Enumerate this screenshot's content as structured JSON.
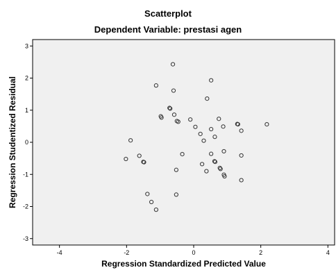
{
  "chart_data": {
    "type": "scatter",
    "title": "Scatterplot",
    "subtitle": "Dependent Variable: prestasi agen",
    "xlabel": "Regression Standardized Predicted Value",
    "ylabel": "Regression Studentized Residual",
    "xlim": [
      -4.8,
      4.2
    ],
    "ylim": [
      -3.2,
      3.2
    ],
    "xticks": [
      -4,
      -2,
      0,
      2,
      4
    ],
    "yticks": [
      -3,
      -2,
      -1,
      0,
      1,
      2,
      3
    ],
    "grid": false,
    "plot_background": "#f0f0f0",
    "point_color": "#333333",
    "marker": "open-circle",
    "points": [
      {
        "x": -0.62,
        "y": 2.43
      },
      {
        "x": 0.52,
        "y": 1.93
      },
      {
        "x": -1.12,
        "y": 1.77
      },
      {
        "x": -0.6,
        "y": 1.61
      },
      {
        "x": 0.4,
        "y": 1.36
      },
      {
        "x": -0.72,
        "y": 1.07
      },
      {
        "x": -0.7,
        "y": 1.05
      },
      {
        "x": -0.58,
        "y": 0.86
      },
      {
        "x": -0.98,
        "y": 0.81
      },
      {
        "x": -0.96,
        "y": 0.77
      },
      {
        "x": -0.1,
        "y": 0.71
      },
      {
        "x": 0.75,
        "y": 0.73
      },
      {
        "x": -0.5,
        "y": 0.66
      },
      {
        "x": -0.46,
        "y": 0.64
      },
      {
        "x": 1.3,
        "y": 0.57
      },
      {
        "x": 1.32,
        "y": 0.56
      },
      {
        "x": 2.18,
        "y": 0.56
      },
      {
        "x": 0.05,
        "y": 0.48
      },
      {
        "x": 0.88,
        "y": 0.49
      },
      {
        "x": 0.52,
        "y": 0.41
      },
      {
        "x": 1.42,
        "y": 0.36
      },
      {
        "x": 0.2,
        "y": 0.26
      },
      {
        "x": 0.63,
        "y": 0.17
      },
      {
        "x": 0.3,
        "y": 0.05
      },
      {
        "x": -1.88,
        "y": 0.06
      },
      {
        "x": 0.9,
        "y": -0.28
      },
      {
        "x": -0.34,
        "y": -0.37
      },
      {
        "x": 0.52,
        "y": -0.36
      },
      {
        "x": -1.62,
        "y": -0.42
      },
      {
        "x": 1.42,
        "y": -0.41
      },
      {
        "x": -2.02,
        "y": -0.52
      },
      {
        "x": -1.5,
        "y": -0.61
      },
      {
        "x": -1.48,
        "y": -0.62
      },
      {
        "x": 0.62,
        "y": -0.59
      },
      {
        "x": 0.64,
        "y": -0.61
      },
      {
        "x": 0.25,
        "y": -0.68
      },
      {
        "x": 0.78,
        "y": -0.8
      },
      {
        "x": 0.8,
        "y": -0.83
      },
      {
        "x": -0.52,
        "y": -0.86
      },
      {
        "x": 0.38,
        "y": -0.9
      },
      {
        "x": 0.9,
        "y": -1.01
      },
      {
        "x": 0.92,
        "y": -1.06
      },
      {
        "x": 1.42,
        "y": -1.18
      },
      {
        "x": -1.38,
        "y": -1.61
      },
      {
        "x": -0.52,
        "y": -1.63
      },
      {
        "x": -1.26,
        "y": -1.86
      },
      {
        "x": -1.12,
        "y": -2.1
      }
    ]
  }
}
